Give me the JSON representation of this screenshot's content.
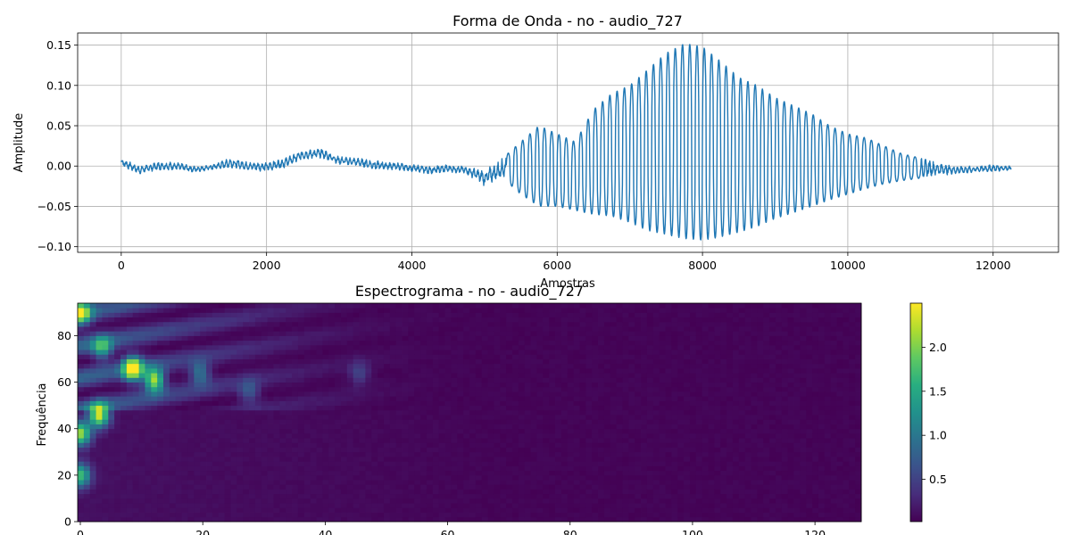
{
  "chart_data": [
    {
      "type": "line",
      "title": "Forma de Onda - no - audio_727",
      "xlabel": "Amostras",
      "ylabel": "Amplitude",
      "xlim": [
        -600,
        12900
      ],
      "ylim": [
        -0.107,
        0.165
      ],
      "xticks": [
        0,
        2000,
        4000,
        6000,
        8000,
        10000,
        12000
      ],
      "xtick_labels": [
        "0",
        "2000",
        "4000",
        "6000",
        "8000",
        "10000",
        "12000"
      ],
      "yticks": [
        -0.1,
        -0.05,
        0.0,
        0.05,
        0.1,
        0.15
      ],
      "ytick_labels": [
        "−0.10",
        "−0.05",
        "0.00",
        "0.05",
        "0.10",
        "0.15"
      ],
      "grid": true,
      "color": "#1f77b4",
      "x": [
        0,
        250,
        500,
        750,
        1000,
        1250,
        1500,
        1750,
        2000,
        2250,
        2500,
        2750,
        3000,
        3250,
        3500,
        3750,
        4000,
        4250,
        4500,
        4750,
        5000,
        5250,
        5500,
        5750,
        6000,
        6250,
        6500,
        6750,
        7000,
        7250,
        7500,
        7750,
        8000,
        8250,
        8500,
        8750,
        9000,
        9250,
        9500,
        9750,
        10000,
        10250,
        10500,
        10750,
        11000,
        11250,
        11500,
        11750,
        12000,
        12250
      ],
      "envelope_max": [
        0.01,
        0.0,
        0.005,
        0.005,
        0.0,
        0.002,
        0.01,
        0.005,
        0.005,
        0.01,
        0.02,
        0.022,
        0.012,
        0.01,
        0.007,
        0.005,
        0.002,
        0.0,
        0.002,
        0.0,
        -0.005,
        0.01,
        0.03,
        0.05,
        0.04,
        0.03,
        0.07,
        0.09,
        0.1,
        0.12,
        0.14,
        0.152,
        0.148,
        0.13,
        0.11,
        0.1,
        0.085,
        0.075,
        0.065,
        0.05,
        0.04,
        0.035,
        0.025,
        0.015,
        0.01,
        0.005,
        0.0,
        0.0,
        0.002,
        0.0
      ],
      "envelope_min": [
        0.0,
        -0.01,
        -0.005,
        -0.005,
        -0.008,
        -0.005,
        -0.002,
        -0.005,
        -0.007,
        -0.002,
        0.008,
        0.01,
        0.002,
        0.0,
        -0.005,
        -0.005,
        -0.007,
        -0.01,
        -0.008,
        -0.01,
        -0.025,
        -0.015,
        -0.035,
        -0.05,
        -0.05,
        -0.055,
        -0.06,
        -0.062,
        -0.07,
        -0.08,
        -0.085,
        -0.09,
        -0.092,
        -0.088,
        -0.082,
        -0.075,
        -0.065,
        -0.058,
        -0.05,
        -0.042,
        -0.035,
        -0.028,
        -0.022,
        -0.018,
        -0.015,
        -0.012,
        -0.01,
        -0.008,
        -0.007,
        -0.005
      ]
    },
    {
      "type": "heatmap",
      "title": "Espectrograma - no - audio_727",
      "xlabel": "",
      "ylabel": "Frequência",
      "xlim": [
        0,
        128
      ],
      "ylim": [
        0,
        94
      ],
      "xticks": [
        0,
        20,
        40,
        60,
        80,
        100,
        120
      ],
      "xtick_labels": [
        "0",
        "20",
        "40",
        "60",
        "80",
        "100",
        "120"
      ],
      "yticks": [
        0,
        20,
        40,
        60,
        80
      ],
      "ytick_labels": [
        "0",
        "20",
        "40",
        "60",
        "80"
      ],
      "colormap": "viridis",
      "colorbar": {
        "range": [
          0.02,
          2.5
        ],
        "ticks": [
          0.5,
          1.0,
          1.5,
          2.0
        ],
        "tick_labels": [
          "0.5",
          "1.0",
          "1.5",
          "2.0"
        ]
      },
      "hotspots": [
        {
          "time": 0.5,
          "freq": 90,
          "value": 1.9
        },
        {
          "time": 0.5,
          "freq": 38,
          "value": 2.0
        },
        {
          "time": 0.5,
          "freq": 20,
          "value": 1.6
        },
        {
          "time": 3.5,
          "freq": 46,
          "value": 2.3
        },
        {
          "time": 9,
          "freq": 66,
          "value": 2.5
        },
        {
          "time": 12.5,
          "freq": 61,
          "value": 2.1
        },
        {
          "time": 4,
          "freq": 75,
          "value": 1.3
        },
        {
          "time": 20,
          "freq": 64,
          "value": 0.9
        },
        {
          "time": 28,
          "freq": 56,
          "value": 0.6
        },
        {
          "time": 46,
          "freq": 64,
          "value": 0.45
        }
      ]
    }
  ]
}
